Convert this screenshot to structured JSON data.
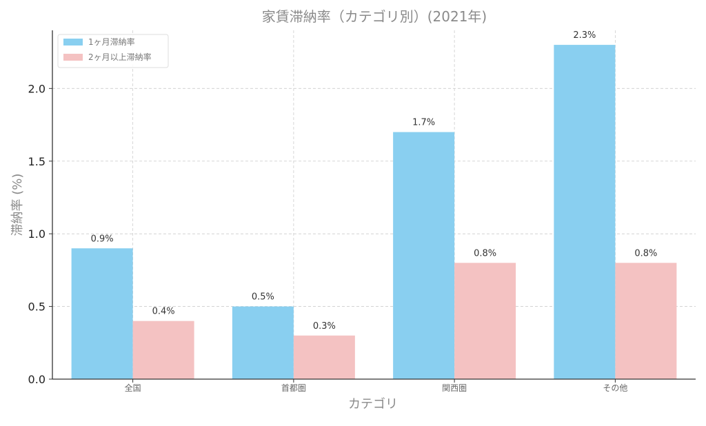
{
  "chart_data": {
    "type": "bar",
    "title": "家賃滞納率（カテゴリ別）(2021年)",
    "xlabel": "カテゴリ",
    "ylabel": "滞納率 (%)",
    "categories": [
      "全国",
      "首都圏",
      "関西圏",
      "その他"
    ],
    "series": [
      {
        "name": "1ヶ月滞納率",
        "color": "#89CFF0",
        "values": [
          0.9,
          0.5,
          1.7,
          2.3
        ],
        "labels": [
          "0.9%",
          "0.5%",
          "1.7%",
          "2.3%"
        ]
      },
      {
        "name": "2ヶ月以上滞納率",
        "color": "#F4C2C2",
        "values": [
          0.4,
          0.3,
          0.8,
          0.8
        ],
        "labels": [
          "0.4%",
          "0.3%",
          "0.8%",
          "0.8%"
        ]
      }
    ],
    "ylim": [
      0,
      2.4
    ],
    "yticks": [
      0.0,
      0.5,
      1.0,
      1.5,
      2.0
    ],
    "ytick_labels": [
      "0.0",
      "0.5",
      "1.0",
      "1.5",
      "2.0"
    ],
    "grid": true,
    "legend_position": "top-left"
  }
}
